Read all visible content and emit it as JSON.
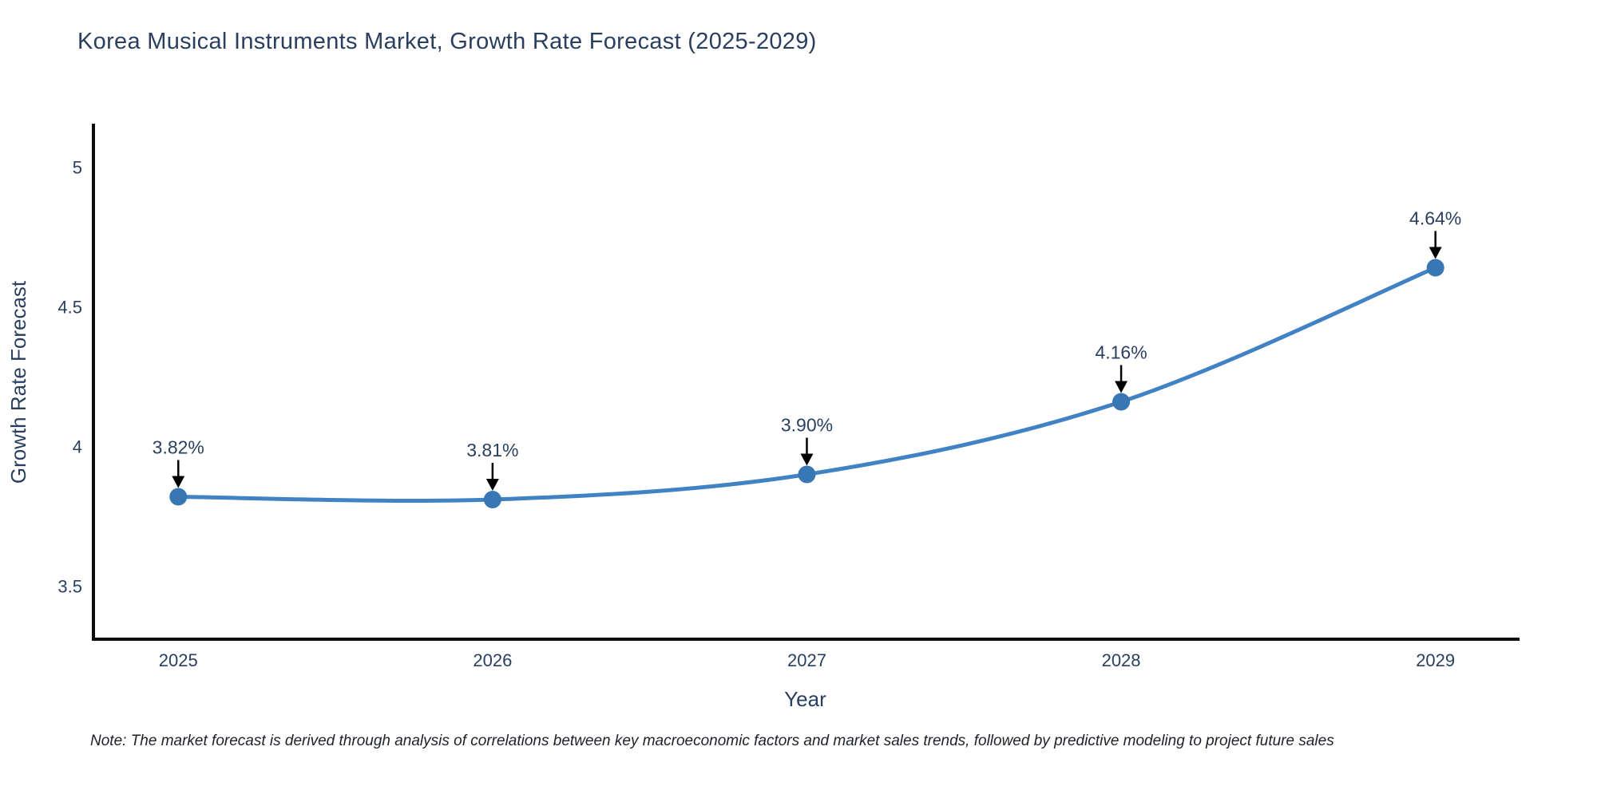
{
  "title": "Korea Musical Instruments Market, Growth Rate Forecast (2025-2029)",
  "note": "Note: The market forecast is derived through analysis of correlations between key macroeconomic factors and market sales trends, followed by predictive modeling to project future sales",
  "chart_data": {
    "type": "line",
    "x": [
      2025,
      2026,
      2027,
      2028,
      2029
    ],
    "values": [
      3.82,
      3.81,
      3.9,
      4.16,
      4.64
    ],
    "point_labels": [
      "3.82%",
      "3.81%",
      "3.90%",
      "4.16%",
      "4.64%"
    ],
    "xlabel": "Year",
    "ylabel": "Growth Rate Forecast",
    "xticks": [
      2025,
      2026,
      2027,
      2028,
      2029
    ],
    "yticks": [
      3.5,
      4,
      4.5,
      5
    ],
    "xlim": [
      2024.73,
      2029.26
    ],
    "ylim": [
      3.31,
      5.15
    ],
    "grid": false,
    "legend": "none",
    "line_shape": "spline",
    "colors": {
      "line": "#4182c4",
      "marker": "#3876b4",
      "axis": "#0d0d0d",
      "text": "#2a3f5f",
      "arrow": "#000000"
    }
  }
}
